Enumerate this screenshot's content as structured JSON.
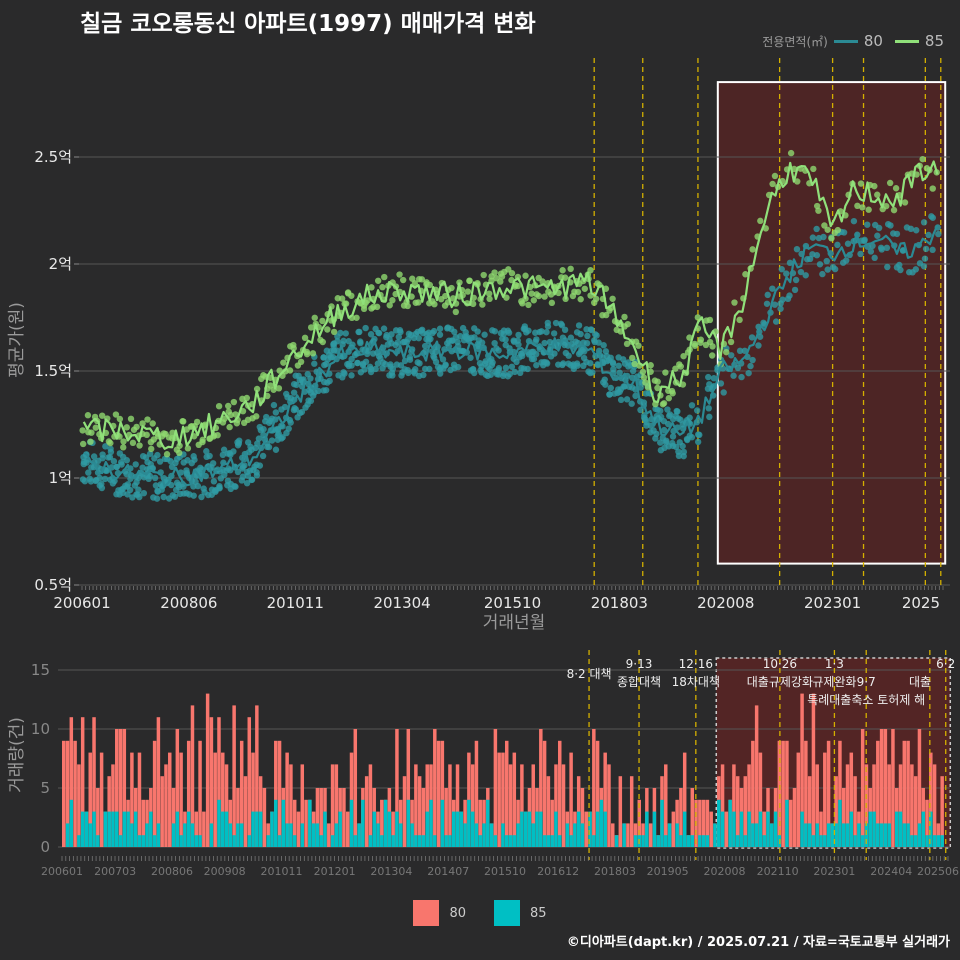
{
  "title": "칠금 코오롱동신 아파트(1997) 매매가격 변화",
  "legend_title": "전용면적(㎡)",
  "footer": "©디아파트(dapt.kr) / 2025.07.21 / 자료=국토교통부 실거래가",
  "colors": {
    "background": "#2a2a2b",
    "grid": "#555555",
    "area80_line": "#2b8a94",
    "area85_line": "#90e07a",
    "bar80": "#f8766d",
    "bar85": "#00bfc4",
    "policy_line": "#d4b000",
    "highlight_fill": "#5a2424",
    "highlight_border": "#ffffff"
  },
  "chart_data": [
    {
      "type": "line",
      "name": "price-chart",
      "xlabel": "거래년월",
      "ylabel": "평균가(원)",
      "x_ticks": [
        "200601",
        "200806",
        "201011",
        "201304",
        "201510",
        "201803",
        "202008",
        "202301",
        "2025"
      ],
      "y_ticks": [
        "0.5억",
        "1억",
        "1.5억",
        "2억",
        "2.5억"
      ],
      "ylim": [
        0.5,
        2.6
      ],
      "y_unit": "억",
      "series": [
        {
          "name": "80",
          "color": "#2b8a94",
          "anchors": [
            [
              2006.0,
              1.08
            ],
            [
              2007.0,
              1.02
            ],
            [
              2008.0,
              1.0
            ],
            [
              2009.0,
              1.03
            ],
            [
              2009.9,
              1.1
            ],
            [
              2010.9,
              1.38
            ],
            [
              2011.8,
              1.57
            ],
            [
              2012.5,
              1.6
            ],
            [
              2013.3,
              1.58
            ],
            [
              2014.5,
              1.6
            ],
            [
              2015.5,
              1.58
            ],
            [
              2016.5,
              1.62
            ],
            [
              2017.5,
              1.6
            ],
            [
              2018.0,
              1.48
            ],
            [
              2018.5,
              1.45
            ],
            [
              2019.0,
              1.25
            ],
            [
              2019.6,
              1.2
            ],
            [
              2020.0,
              1.28
            ],
            [
              2020.5,
              1.5
            ],
            [
              2021.0,
              1.55
            ],
            [
              2021.5,
              1.75
            ],
            [
              2022.0,
              1.95
            ],
            [
              2022.5,
              2.08
            ],
            [
              2023.0,
              2.05
            ],
            [
              2023.5,
              2.1
            ],
            [
              2024.0,
              2.12
            ],
            [
              2024.5,
              2.05
            ],
            [
              2025.0,
              2.08
            ],
            [
              2025.4,
              2.18
            ]
          ]
        },
        {
          "name": "85",
          "color": "#90e07a",
          "anchors": [
            [
              2006.0,
              1.22
            ],
            [
              2007.0,
              1.22
            ],
            [
              2008.0,
              1.18
            ],
            [
              2009.0,
              1.25
            ],
            [
              2009.9,
              1.35
            ],
            [
              2010.9,
              1.6
            ],
            [
              2011.8,
              1.78
            ],
            [
              2012.5,
              1.85
            ],
            [
              2013.3,
              1.88
            ],
            [
              2014.5,
              1.85
            ],
            [
              2015.5,
              1.9
            ],
            [
              2016.5,
              1.88
            ],
            [
              2017.5,
              1.92
            ],
            [
              2018.0,
              1.78
            ],
            [
              2018.5,
              1.62
            ],
            [
              2019.0,
              1.4
            ],
            [
              2019.6,
              1.48
            ],
            [
              2020.0,
              1.7
            ],
            [
              2020.5,
              1.6
            ],
            [
              2021.0,
              1.85
            ],
            [
              2021.5,
              2.25
            ],
            [
              2022.0,
              2.45
            ],
            [
              2022.5,
              2.4
            ],
            [
              2023.0,
              2.15
            ],
            [
              2023.5,
              2.35
            ],
            [
              2024.0,
              2.32
            ],
            [
              2024.5,
              2.3
            ],
            [
              2025.0,
              2.45
            ],
            [
              2025.4,
              2.42
            ]
          ]
        }
      ],
      "highlight": {
        "from": 2020.4,
        "to": 2025.55,
        "ymin": 0.6,
        "ymax": 2.85
      }
    },
    {
      "type": "bar",
      "name": "volume-chart",
      "ylabel": "거래량(건)",
      "x_ticks": [
        "200601",
        "200703",
        "200806",
        "200908",
        "201011",
        "201201",
        "201304",
        "201407",
        "201510",
        "201612",
        "201803",
        "201905",
        "202008",
        "202110",
        "202301",
        "202404",
        "202506"
      ],
      "y_ticks": [
        "0",
        "5",
        "10",
        "15"
      ],
      "ylim": [
        0,
        16
      ],
      "series": [
        {
          "name": "80",
          "color": "#f8766d"
        },
        {
          "name": "85",
          "color": "#00bfc4"
        }
      ],
      "highlight": {
        "from": 2020.4,
        "to": 2025.55
      }
    }
  ],
  "policy_events": [
    {
      "date": 2017.6,
      "label": "8·2 대책",
      "label2": ""
    },
    {
      "date": 2018.7,
      "label": "9·13",
      "label2": "종합대책"
    },
    {
      "date": 2019.95,
      "label": "12·16",
      "label2": "18차대책"
    },
    {
      "date": 2021.8,
      "label": "10·26",
      "label2": "대출규제강화"
    },
    {
      "date": 2023.0,
      "label": "1·3",
      "label2": "규제완화"
    },
    {
      "date": 2023.7,
      "label": "9·7",
      "label2": "특례대출축소 토허제 해"
    },
    {
      "date": 2025.1,
      "label": "",
      "label2": ""
    },
    {
      "date": 2025.45,
      "label": "6·2",
      "label2": "대출"
    }
  ]
}
